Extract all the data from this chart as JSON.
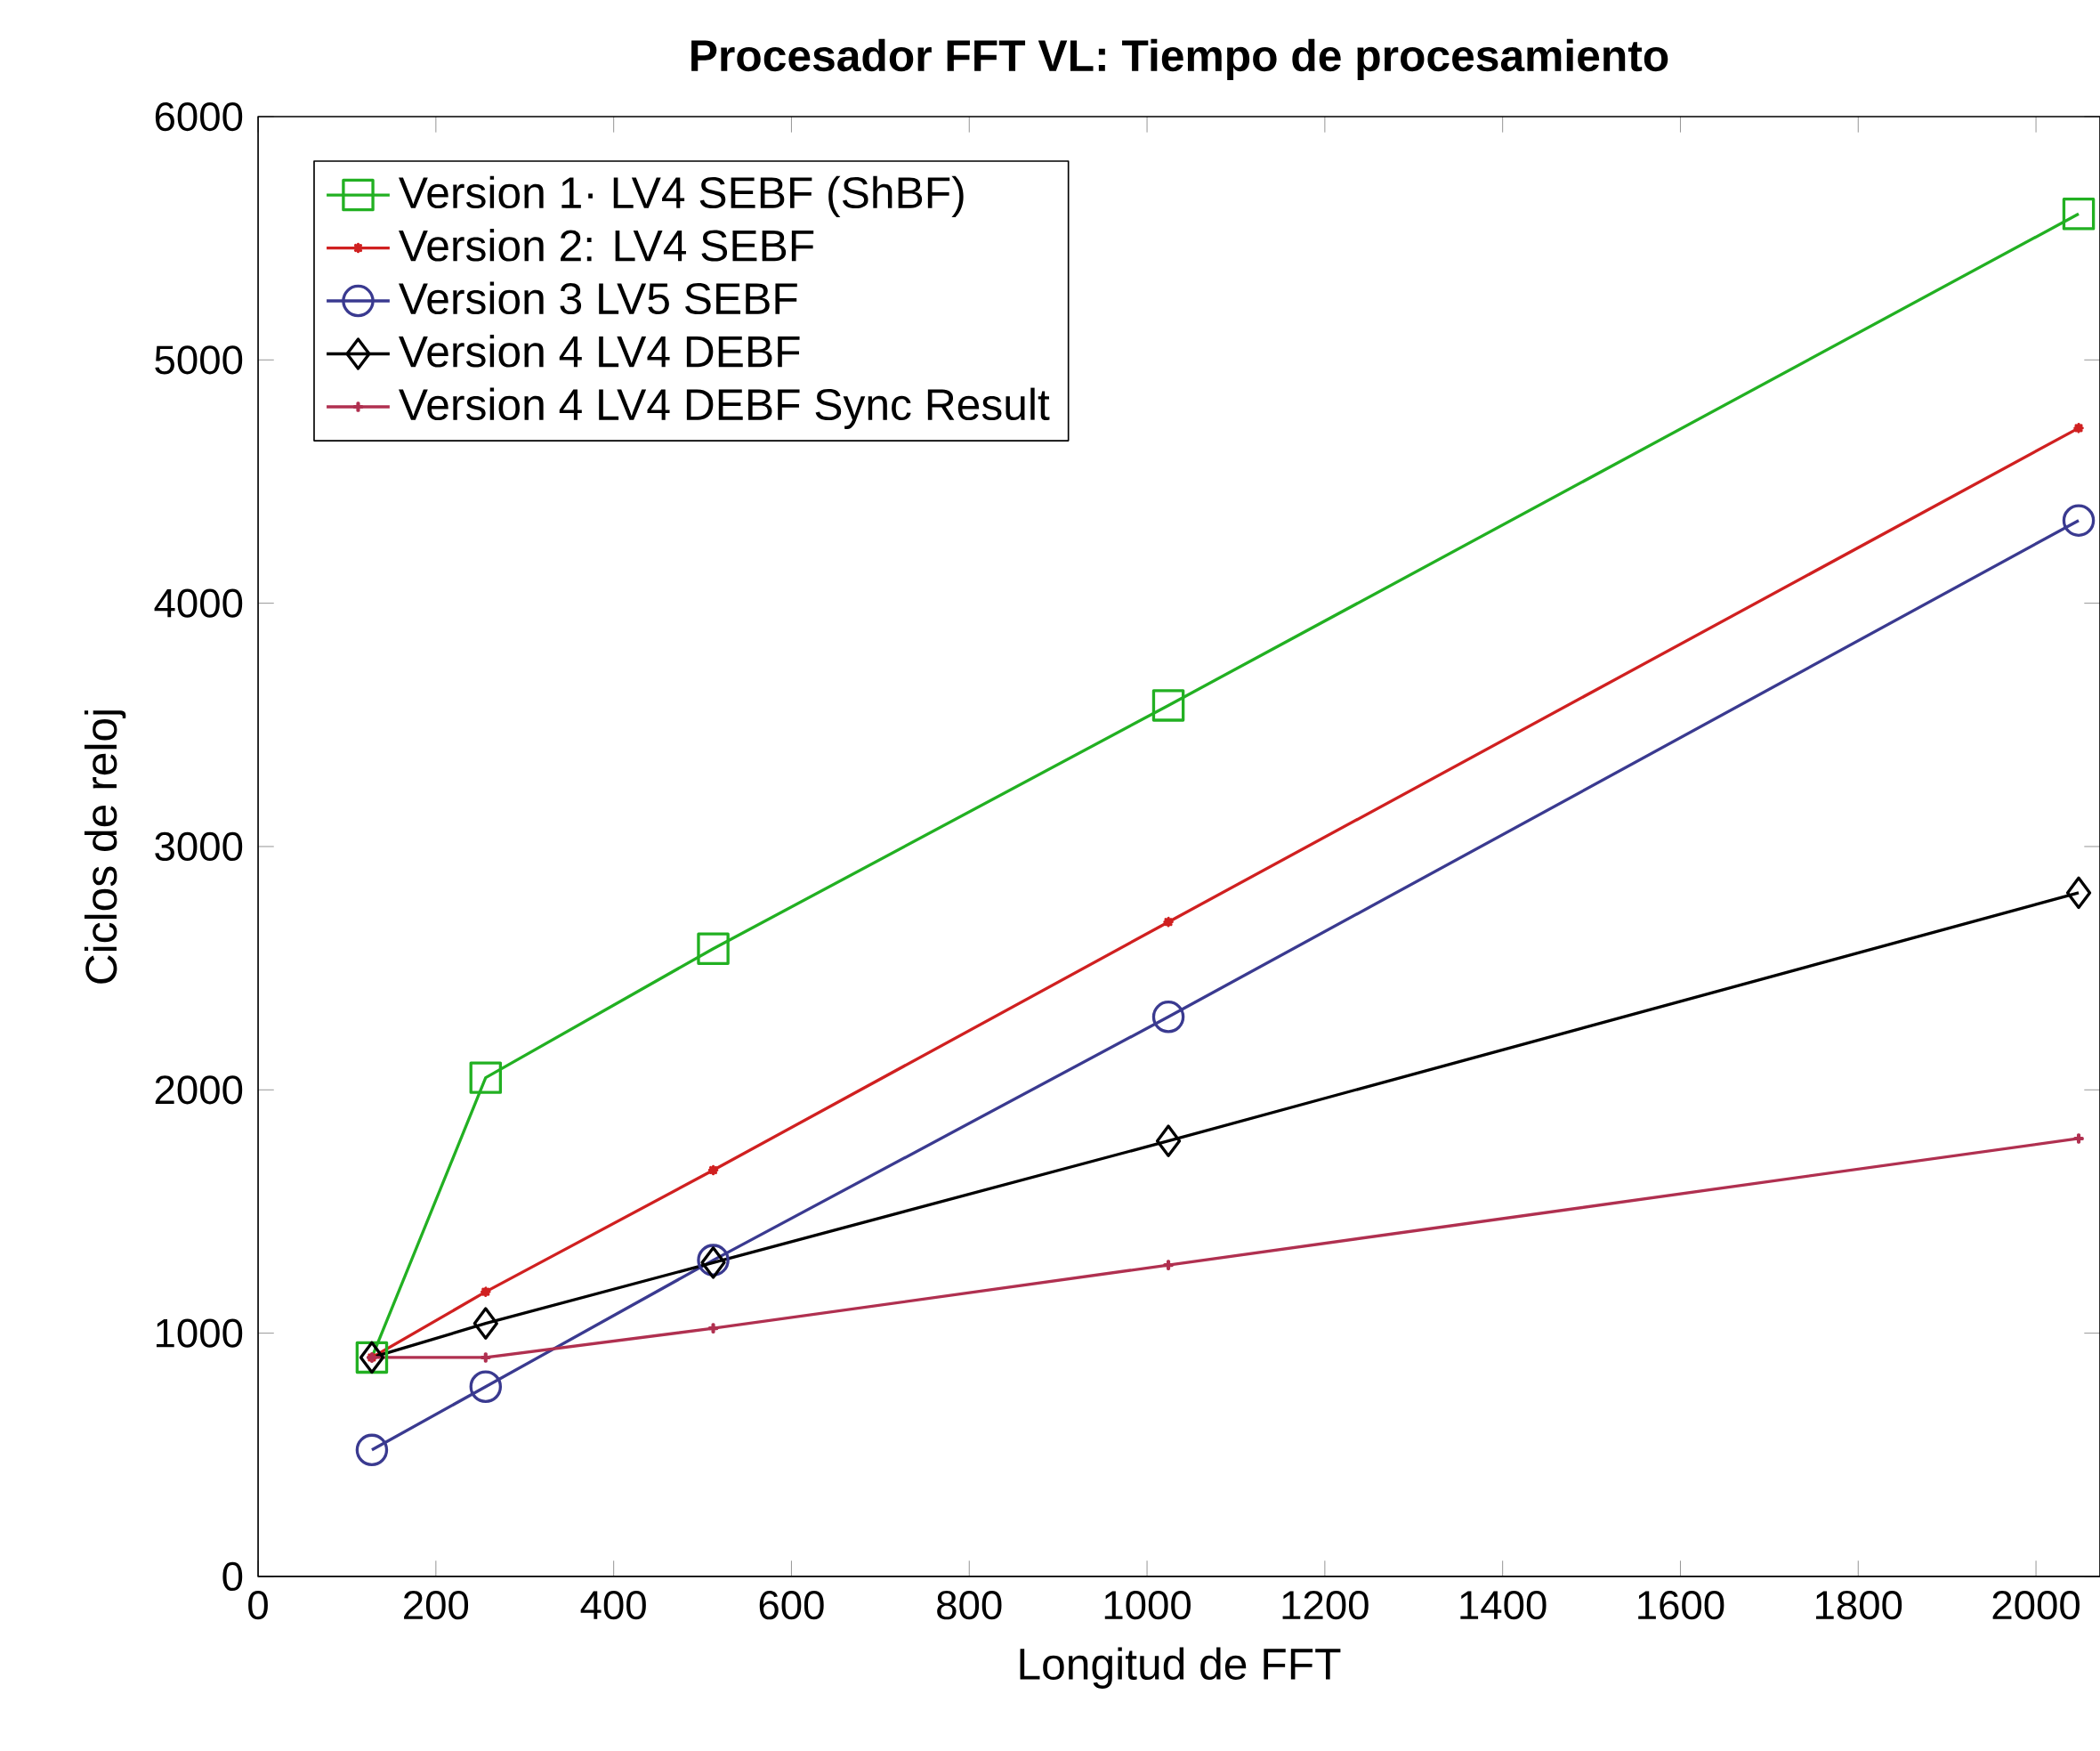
{
  "chart_data": {
    "type": "line",
    "title": "Procesador FFT VL: Tiempo de procesamiento",
    "xlabel": "Longitud de FFT",
    "ylabel": "Ciclos de reloj",
    "x": [
      128,
      256,
      512,
      1024,
      2048
    ],
    "series": [
      {
        "name": "Version 1· LV4 SEBF (ShBF)",
        "color": "#22b022",
        "marker": "square",
        "values": [
          900,
          2050,
          2580,
          3580,
          5600
        ]
      },
      {
        "name": "Version 2: LV4 SEBF",
        "color": "#d02020",
        "marker": "star",
        "values": [
          900,
          1170,
          1670,
          2690,
          4720
        ]
      },
      {
        "name": "Version 3  LV5  SEBF",
        "color": "#3a3a90",
        "marker": "circle",
        "values": [
          520,
          780,
          1300,
          2300,
          4340
        ]
      },
      {
        "name": "Version 4  LV4  DEBF",
        "color": "#000000",
        "marker": "diamond",
        "values": [
          900,
          1040,
          1290,
          1790,
          2810
        ]
      },
      {
        "name": "Version 4  LV4  DEBF Sync Result",
        "color": "#b03050",
        "marker": "cross",
        "values": [
          900,
          900,
          1020,
          1280,
          1800
        ]
      }
    ],
    "xlim": [
      0,
      2072
    ],
    "ylim": [
      0,
      6000
    ],
    "xticks": [
      0,
      200,
      400,
      600,
      800,
      1000,
      1200,
      1400,
      1600,
      1800,
      2000
    ],
    "yticks": [
      0,
      1000,
      2000,
      3000,
      4000,
      5000,
      6000
    ],
    "grid": false,
    "legend": "top left",
    "line_style": "solid"
  }
}
